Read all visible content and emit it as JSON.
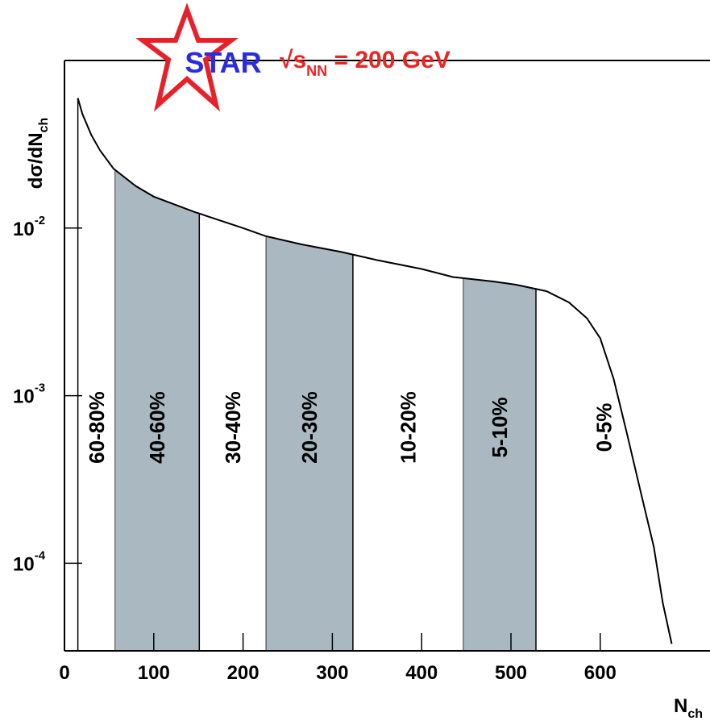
{
  "chart_data": {
    "type": "line",
    "title": "STAR",
    "annotation": {
      "prefix": "√s",
      "sub": "NN",
      "suffix": " = 200 GeV"
    },
    "x_label": {
      "main": "N",
      "sub": "ch"
    },
    "y_label": {
      "main": "dσ/dN",
      "sub": "ch"
    },
    "log_y": true,
    "xlim": [
      0,
      722
    ],
    "ylim": [
      3e-05,
      0.1
    ],
    "xticks": [
      0,
      100,
      200,
      300,
      400,
      500,
      600
    ],
    "yticks": [
      {
        "value": 0.01,
        "label": "10",
        "exponent": "-2"
      },
      {
        "value": 0.001,
        "label": "10",
        "exponent": "-3"
      },
      {
        "value": 0.0001,
        "label": "10",
        "exponent": "-4"
      }
    ],
    "series": [
      {
        "color": "#000000",
        "x": [
          15,
          20,
          30,
          40,
          55,
          80,
          100,
          145,
          200,
          225,
          265,
          310,
          350,
          400,
          435,
          480,
          505,
          540,
          565,
          585,
          600,
          615,
          630,
          645,
          660,
          670,
          680
        ],
        "values": [
          0.0596,
          0.048,
          0.036,
          0.029,
          0.0226,
          0.0178,
          0.0154,
          0.0125,
          0.01,
          0.00896,
          0.008,
          0.0072,
          0.00644,
          0.0057,
          0.0051,
          0.0048,
          0.0046,
          0.0042,
          0.0036,
          0.0029,
          0.0022,
          0.00126,
          0.00059,
          0.00027,
          0.000125,
          5.8e-05,
          3.3e-05
        ]
      }
    ],
    "bands": [
      {
        "label": "60-80%",
        "from": 15,
        "to": 57,
        "shaded": false
      },
      {
        "label": "40-60%",
        "from": 57,
        "to": 151,
        "shaded": true
      },
      {
        "label": "30-40%",
        "from": 151,
        "to": 226,
        "shaded": false
      },
      {
        "label": "20-30%",
        "from": 226,
        "to": 323,
        "shaded": true
      },
      {
        "label": "10-20%",
        "from": 323,
        "to": 447,
        "shaded": false
      },
      {
        "label": "5-10%",
        "from": 447,
        "to": 528,
        "shaded": true
      },
      {
        "label": "0-5%",
        "from": 528,
        "to": 680,
        "shaded": false
      }
    ],
    "band_color": "#aab9c1"
  }
}
